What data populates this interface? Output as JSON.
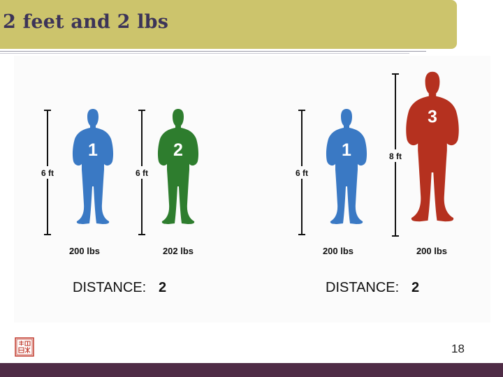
{
  "slide": {
    "title": "2 feet and 2 lbs",
    "page_number": "18"
  },
  "comparisons": [
    {
      "people": [
        {
          "number": "1",
          "height": "6 ft",
          "weight": "200 lbs",
          "color": "#3a79c4"
        },
        {
          "number": "2",
          "height": "6 ft",
          "weight": "202 lbs",
          "color": "#2e7d2e"
        }
      ],
      "distance_label": "DISTANCE:",
      "distance_value": "2"
    },
    {
      "people": [
        {
          "number": "1",
          "height": "6 ft",
          "weight": "200 lbs",
          "color": "#3a79c4"
        },
        {
          "number": "3",
          "height": "8 ft",
          "weight": "200 lbs",
          "color": "#b5311f"
        }
      ],
      "distance_label": "DISTANCE:",
      "distance_value": "2"
    }
  ],
  "colors": {
    "title_bar": "#ccc46c",
    "title_text": "#3c3458",
    "footer_bar": "#4f2c46",
    "seal": "#c0392b"
  },
  "icons": {
    "seal": "red-seal-logo"
  }
}
